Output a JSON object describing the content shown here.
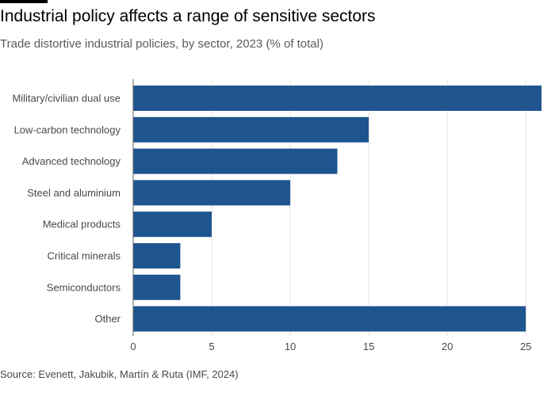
{
  "header": {
    "title": "Industrial policy affects a range of sensitive sectors",
    "subtitle": "Trade distortive industrial policies, by sector, 2023 (% of total)"
  },
  "footer": {
    "source": "Source: Evenett, Jakubik, Martín & Ruta (IMF, 2024)"
  },
  "colors": {
    "bar": "#1f558f",
    "grid": "#e6e3df",
    "baseline": "#66605c"
  },
  "chart_data": {
    "type": "bar",
    "orientation": "horizontal",
    "title": "Industrial policy affects a range of sensitive sectors",
    "subtitle": "Trade distortive industrial policies, by sector, 2023 (% of total)",
    "categories": [
      "Military/civilian dual use",
      "Low-carbon technology",
      "Advanced technology",
      "Steel and aluminium",
      "Medical products",
      "Critical minerals",
      "Semiconductors",
      "Other"
    ],
    "values": [
      26,
      15,
      13,
      10,
      5,
      3,
      3,
      25
    ],
    "xlim": [
      0,
      26
    ],
    "xticks": [
      0,
      5,
      10,
      15,
      20,
      25
    ],
    "grid": true,
    "legend": "none"
  }
}
